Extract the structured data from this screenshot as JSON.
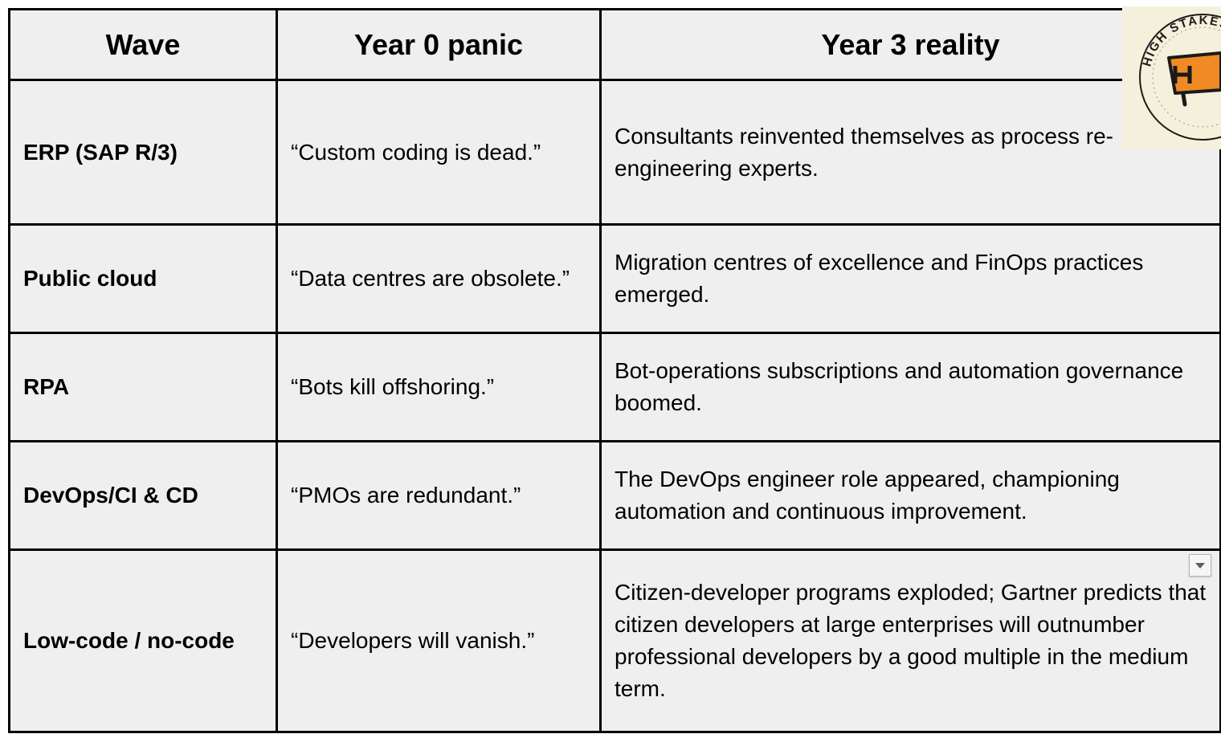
{
  "table": {
    "headers": [
      "Wave",
      "Year 0 panic",
      "Year 3 reality"
    ],
    "rows": [
      {
        "wave": "ERP (SAP R/3)",
        "panic": "“Custom coding is dead.”",
        "reality": "Consultants reinvented themselves as process re-engineering experts."
      },
      {
        "wave": "Public cloud",
        "panic": "“Data centres are obsolete.”",
        "reality": "Migration centres of excellence and FinOps practices emerged."
      },
      {
        "wave": "RPA",
        "panic": "“Bots kill offshoring.”",
        "reality": "Bot-operations subscriptions and automation governance boomed."
      },
      {
        "wave": "DevOps/CI & CD",
        "panic": "“PMOs are redundant.”",
        "reality": "The DevOps engineer role appeared, championing automation and continuous improvement."
      },
      {
        "wave": "Low-code / no-code",
        "panic": "“Developers will vanish.”",
        "reality": "Citizen-developer programs exploded; Gartner predicts that citizen developers at large enterprises will outnumber professional developers by a good multiple in the medium term."
      }
    ]
  },
  "badge": {
    "text": "HIGH STAKES",
    "letter": "H",
    "icon": "flag-icon"
  },
  "controls": {
    "dropdown_icon": "chevron-down-icon"
  },
  "colors": {
    "cell_background": "#efefef",
    "border": "#000000",
    "badge_background": "#f5f0dc",
    "badge_accent": "#f08a24"
  }
}
